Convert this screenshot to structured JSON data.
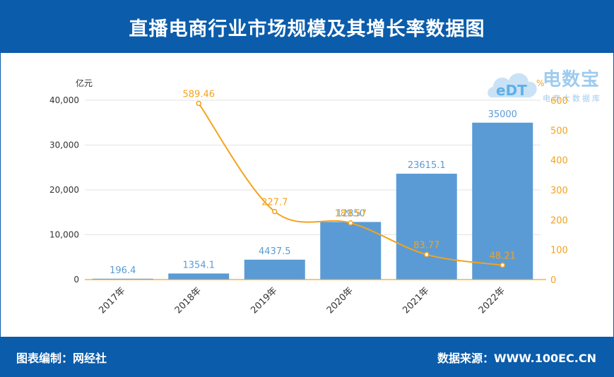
{
  "header": {
    "title": "直播电商行业市场规模及其增长率数据图"
  },
  "footer": {
    "left": "图表编制：网经社",
    "right": "数据来源：WWW.100EC.CN"
  },
  "logo": {
    "name": "电数宝",
    "subtitle": "电商大数据库",
    "badge": "eDT"
  },
  "colors": {
    "brand": "#0b5cab",
    "bar": "#5b9bd5",
    "line": "#f5a21d",
    "bar_label": "#5b9bd5",
    "line_label": "#f5a21d"
  },
  "chart_data": {
    "type": "bar",
    "categories": [
      "2017年",
      "2018年",
      "2019年",
      "2020年",
      "2021年",
      "2022年"
    ],
    "series": [
      {
        "type": "bar",
        "axis": "left",
        "values": [
          196.4,
          1354.1,
          4437.5,
          12850,
          23615.1,
          35000
        ],
        "labels": [
          "196.4",
          "1354.1",
          "4437.5",
          "12850",
          "23615.1",
          "35000"
        ]
      },
      {
        "type": "line",
        "axis": "right",
        "values": [
          null,
          589.46,
          227.7,
          189.57,
          83.77,
          48.21
        ],
        "labels": [
          "",
          "589.46",
          "227.7",
          "189.57",
          "83.77",
          "48.21"
        ]
      }
    ],
    "left_axis": {
      "unit": "亿元",
      "ylim": [
        0,
        40000
      ],
      "ticks": [
        0,
        10000,
        20000,
        30000,
        40000
      ],
      "tick_labels": [
        "0",
        "10,000",
        "20,000",
        "30,000",
        "40,000"
      ]
    },
    "right_axis": {
      "unit": "%",
      "ylim": [
        0,
        600
      ],
      "ticks": [
        0,
        100,
        200,
        300,
        400,
        500,
        600
      ],
      "tick_labels": [
        "0",
        "100",
        "200",
        "300",
        "400",
        "500",
        "600"
      ]
    },
    "grid": true
  }
}
